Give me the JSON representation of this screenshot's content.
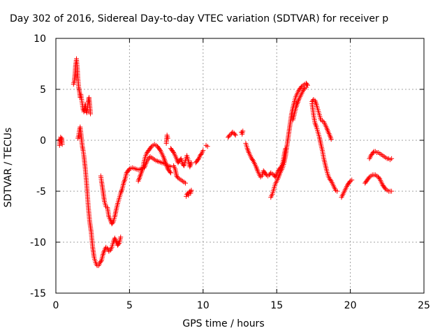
{
  "chart_data": {
    "type": "scatter",
    "title": "Day 302 of 2016, Sidereal Day-to-day VTEC variation (SDTVAR) for receiver p",
    "xlabel": "GPS time / hours",
    "ylabel": "SDTVAR / TECUs",
    "xlim": [
      0,
      25
    ],
    "ylim": [
      -15,
      10
    ],
    "xticks": [
      0,
      5,
      10,
      15,
      20,
      25
    ],
    "yticks": [
      -15,
      -10,
      -5,
      0,
      5,
      10
    ],
    "xtick_labels": [
      "0",
      "5",
      "10",
      "15",
      "20",
      "25"
    ],
    "ytick_labels": [
      "-15",
      "-10",
      "-5",
      "0",
      "5",
      "10"
    ],
    "grid": true,
    "marker": "+",
    "series_color": "#ff0000",
    "series": [
      {
        "segments": [
          {
            "x": [
              0.25,
              0.28,
              0.32,
              0.36,
              0.4,
              0.43
            ],
            "y": [
              -0.5,
              0.1,
              0.3,
              -0.1,
              0.2,
              -0.4
            ]
          },
          {
            "x": [
              1.2,
              1.25,
              1.3,
              1.35,
              1.4,
              1.45,
              1.5,
              1.55,
              1.6,
              1.65,
              1.7,
              1.75,
              1.8,
              1.85,
              1.9,
              1.95,
              2.0,
              2.05,
              2.1,
              2.15,
              2.2,
              2.25,
              2.3,
              2.35
            ],
            "y": [
              5.5,
              5.8,
              6.5,
              7.5,
              8.0,
              7.2,
              6.0,
              5.2,
              4.8,
              4.2,
              4.5,
              4.0,
              3.5,
              3.0,
              2.8,
              3.2,
              3.5,
              3.0,
              2.7,
              3.2,
              3.8,
              4.2,
              3.5,
              2.6
            ]
          },
          {
            "x": [
              1.5,
              1.55,
              1.6,
              1.65,
              1.7,
              1.75,
              1.8,
              1.85,
              1.9,
              2.0,
              2.1,
              2.2,
              2.3,
              2.4,
              2.5,
              2.6,
              2.7,
              2.8,
              2.9,
              3.0,
              3.1,
              3.2,
              3.3,
              3.4,
              3.5,
              3.6,
              3.7,
              3.8,
              3.9,
              4.0,
              4.1,
              4.2,
              4.3,
              4.4
            ],
            "y": [
              0.2,
              0.5,
              1.0,
              1.3,
              0.7,
              0.0,
              -0.6,
              -1.0,
              -1.5,
              -2.8,
              -4.5,
              -6.5,
              -8.0,
              -9.0,
              -10.5,
              -11.5,
              -12.0,
              -12.3,
              -12.3,
              -12.0,
              -11.8,
              -11.2,
              -10.8,
              -10.5,
              -10.6,
              -10.9,
              -10.8,
              -10.5,
              -10.0,
              -9.6,
              -9.9,
              -10.3,
              -10.1,
              -9.5
            ]
          },
          {
            "x": [
              3.05,
              3.1,
              3.2,
              3.3,
              3.4,
              3.5,
              3.6,
              3.7,
              3.8,
              3.9,
              4.0,
              4.1,
              4.2,
              4.3,
              4.4,
              4.5,
              4.6,
              4.7,
              4.8,
              4.9,
              5.0,
              5.2,
              5.4,
              5.6,
              5.8,
              6.0,
              6.2,
              6.4,
              6.6,
              6.8,
              7.0,
              7.2,
              7.4,
              7.6,
              7.8
            ],
            "y": [
              -3.5,
              -4.0,
              -5.0,
              -6.0,
              -6.5,
              -6.6,
              -7.5,
              -7.8,
              -8.2,
              -8.0,
              -7.5,
              -6.8,
              -6.2,
              -5.7,
              -5.2,
              -4.8,
              -4.2,
              -3.8,
              -3.2,
              -3.0,
              -2.8,
              -2.7,
              -2.8,
              -2.9,
              -2.8,
              -2.7,
              -2.0,
              -1.6,
              -1.8,
              -2.0,
              -2.1,
              -2.2,
              -2.3,
              -2.5,
              -2.6
            ]
          },
          {
            "x": [
              5.6,
              5.7,
              5.8,
              5.9,
              6.0,
              6.1,
              6.2,
              6.3,
              6.4,
              6.5,
              6.6,
              6.7,
              6.8,
              6.9,
              7.0,
              7.1,
              7.2,
              7.3,
              7.4,
              7.5,
              7.6,
              7.7,
              7.8
            ],
            "y": [
              -4.0,
              -3.6,
              -3.2,
              -2.8,
              -2.0,
              -1.5,
              -1.2,
              -1.0,
              -0.8,
              -0.6,
              -0.5,
              -0.4,
              -0.5,
              -0.6,
              -0.8,
              -1.0,
              -1.3,
              -1.6,
              -2.0,
              -2.4,
              -2.8,
              -3.0,
              -3.2
            ]
          },
          {
            "x": [
              7.5,
              7.55,
              7.6
            ],
            "y": [
              -0.3,
              0.5,
              0.2
            ]
          },
          {
            "x": [
              7.8,
              7.9,
              8.0,
              8.1,
              8.2,
              8.3,
              8.4,
              8.5,
              8.6,
              8.7,
              8.8,
              8.9,
              9.0,
              9.1,
              9.2
            ],
            "y": [
              -0.8,
              -1.0,
              -1.2,
              -1.5,
              -1.8,
              -2.2,
              -2.0,
              -1.8,
              -2.3,
              -2.5,
              -2.0,
              -1.5,
              -2.0,
              -2.6,
              -2.2
            ]
          },
          {
            "x": [
              8.0,
              8.1,
              8.2,
              8.3,
              8.4,
              8.5,
              8.6,
              8.7,
              8.8
            ],
            "y": [
              -2.5,
              -2.8,
              -3.5,
              -3.7,
              -3.8,
              -3.9,
              -4.0,
              -4.1,
              -4.2
            ]
          },
          {
            "x": [
              8.85,
              8.9,
              8.95,
              9.0,
              9.05,
              9.1,
              9.15,
              9.2
            ],
            "y": [
              -5.5,
              -5.3,
              -5.2,
              -5.4,
              -5.1,
              -5.0,
              -5.2,
              -4.9
            ]
          },
          {
            "x": [
              9.5,
              9.6,
              9.7,
              9.8,
              9.9,
              10.0
            ],
            "y": [
              -2.2,
              -2.0,
              -1.8,
              -1.5,
              -1.3,
              -1.0
            ]
          },
          {
            "x": [
              10.2,
              10.3
            ],
            "y": [
              -0.5,
              -0.6
            ]
          },
          {
            "x": [
              11.7,
              11.8,
              11.9,
              12.0,
              12.1,
              12.2
            ],
            "y": [
              0.3,
              0.5,
              0.6,
              0.8,
              0.7,
              0.5
            ]
          },
          {
            "x": [
              12.6,
              12.65,
              12.7
            ],
            "y": [
              0.8,
              0.6,
              0.9
            ]
          },
          {
            "x": [
              12.9,
              13.0,
              13.1,
              13.2,
              13.3,
              13.4,
              13.5,
              13.6,
              13.7,
              13.8,
              13.9,
              14.0,
              14.1,
              14.2,
              14.3,
              14.4,
              14.5,
              14.6,
              14.7,
              14.8,
              14.9,
              15.0,
              15.1,
              15.2,
              15.3,
              15.4,
              15.5,
              15.6
            ],
            "y": [
              -0.3,
              -0.8,
              -1.2,
              -1.5,
              -1.8,
              -2.0,
              -2.3,
              -2.6,
              -3.0,
              -3.3,
              -3.6,
              -3.5,
              -3.0,
              -3.2,
              -3.4,
              -3.5,
              -3.4,
              -3.2,
              -3.3,
              -3.4,
              -3.6,
              -3.3,
              -3.0,
              -2.8,
              -2.6,
              -2.3,
              -1.5,
              -0.8
            ]
          },
          {
            "x": [
              14.6,
              14.7,
              14.8,
              14.9,
              15.0,
              15.1,
              15.2,
              15.3,
              15.4,
              15.5,
              15.6,
              15.7,
              15.8,
              15.9,
              16.0,
              16.1,
              16.2,
              16.3,
              16.4,
              16.5,
              16.6,
              16.7,
              16.8,
              16.9,
              17.0,
              17.1
            ],
            "y": [
              -5.6,
              -5.3,
              -4.8,
              -4.3,
              -4.0,
              -3.7,
              -3.3,
              -3.0,
              -2.7,
              -2.2,
              -1.5,
              -0.5,
              0.5,
              1.5,
              2.5,
              3.2,
              3.8,
              4.3,
              4.6,
              4.9,
              5.1,
              5.3,
              5.4,
              5.5,
              5.6,
              5.4
            ]
          },
          {
            "x": [
              16.1,
              16.2,
              16.3,
              16.4,
              16.5,
              16.6,
              16.7,
              16.8,
              16.9,
              17.0
            ],
            "y": [
              2.0,
              2.6,
              3.2,
              3.6,
              4.0,
              4.3,
              4.6,
              4.9,
              5.1,
              5.2
            ]
          },
          {
            "x": [
              17.4,
              17.5,
              17.6,
              17.7,
              17.8,
              17.9,
              18.0,
              18.1,
              18.2,
              18.3,
              18.4,
              18.5,
              18.6,
              18.7
            ],
            "y": [
              3.8,
              4.0,
              3.9,
              3.5,
              3.0,
              2.5,
              2.0,
              1.9,
              1.8,
              1.5,
              1.2,
              0.8,
              0.5,
              0.1
            ]
          },
          {
            "x": [
              17.4,
              17.5,
              17.6,
              17.7,
              17.8,
              17.9,
              18.0,
              18.1,
              18.2,
              18.3,
              18.4,
              18.5,
              18.6,
              18.7,
              18.8,
              18.9,
              19.0,
              19.1
            ],
            "y": [
              3.6,
              2.5,
              1.7,
              1.3,
              0.8,
              0.3,
              -0.4,
              -1.0,
              -1.8,
              -2.4,
              -3.0,
              -3.5,
              -3.8,
              -4.0,
              -4.3,
              -4.6,
              -4.9,
              -5.0
            ]
          },
          {
            "x": [
              19.4,
              19.5,
              19.6,
              19.7,
              19.8,
              19.9,
              20.0,
              20.1
            ],
            "y": [
              -5.6,
              -5.3,
              -5.0,
              -4.7,
              -4.4,
              -4.2,
              -4.0,
              -3.9
            ]
          },
          {
            "x": [
              21.0,
              21.1,
              21.2,
              21.3,
              21.4,
              21.5,
              21.6,
              21.7,
              21.8,
              21.9,
              22.0,
              22.1,
              22.2,
              22.3,
              22.4,
              22.5,
              22.6,
              22.7,
              22.8
            ],
            "y": [
              -4.2,
              -4.0,
              -3.8,
              -3.6,
              -3.5,
              -3.4,
              -3.4,
              -3.4,
              -3.5,
              -3.6,
              -3.8,
              -4.1,
              -4.4,
              -4.6,
              -4.8,
              -4.9,
              -5.0,
              -5.0,
              -5.0
            ]
          },
          {
            "x": [
              21.3,
              21.4,
              21.5,
              21.6,
              21.7,
              21.8,
              21.9,
              22.0,
              22.1,
              22.2,
              22.3,
              22.4,
              22.5,
              22.6,
              22.7,
              22.8
            ],
            "y": [
              -1.8,
              -1.5,
              -1.3,
              -1.1,
              -1.1,
              -1.2,
              -1.2,
              -1.3,
              -1.4,
              -1.5,
              -1.6,
              -1.7,
              -1.8,
              -1.8,
              -1.9,
              -1.8
            ]
          }
        ]
      }
    ]
  }
}
